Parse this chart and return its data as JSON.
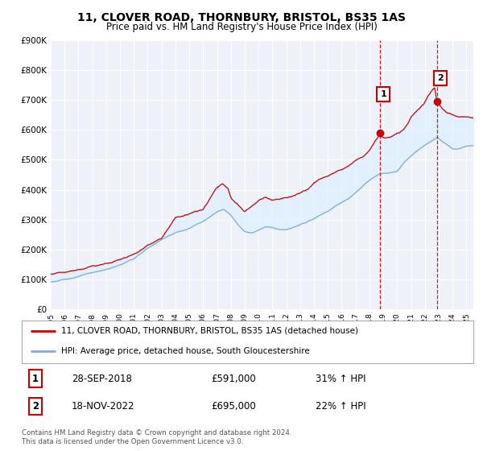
{
  "title": "11, CLOVER ROAD, THORNBURY, BRISTOL, BS35 1AS",
  "subtitle": "Price paid vs. HM Land Registry's House Price Index (HPI)",
  "red_label": "11, CLOVER ROAD, THORNBURY, BRISTOL, BS35 1AS (detached house)",
  "blue_label": "HPI: Average price, detached house, South Gloucestershire",
  "transaction1": {
    "label": "1",
    "date": "28-SEP-2018",
    "price": "£591,000",
    "change": "31% ↑ HPI",
    "year": 2018.75
  },
  "transaction2": {
    "label": "2",
    "date": "18-NOV-2022",
    "price": "£695,000",
    "change": "22% ↑ HPI",
    "year": 2022.88
  },
  "footer": "Contains HM Land Registry data © Crown copyright and database right 2024.\nThis data is licensed under the Open Government Licence v3.0.",
  "ylim": [
    0,
    900000
  ],
  "ytick_vals": [
    0,
    100000,
    200000,
    300000,
    400000,
    500000,
    600000,
    700000,
    800000,
    900000
  ],
  "ytick_labels": [
    "£0",
    "£100K",
    "£200K",
    "£300K",
    "£400K",
    "£500K",
    "£600K",
    "£700K",
    "£800K",
    "£900K"
  ],
  "xlim_start": 1995.0,
  "xlim_end": 2025.5,
  "xticks": [
    1995,
    1996,
    1997,
    1998,
    1999,
    2000,
    2001,
    2002,
    2003,
    2004,
    2005,
    2006,
    2007,
    2008,
    2009,
    2010,
    2011,
    2012,
    2013,
    2014,
    2015,
    2016,
    2017,
    2018,
    2019,
    2020,
    2021,
    2022,
    2023,
    2024,
    2025
  ],
  "red_color": "#cc0000",
  "blue_color": "#7aabdb",
  "blue_fill_color": "#ddeeff",
  "vline_color": "#cc0000",
  "marker1_value": 591000,
  "marker1_year": 2018.75,
  "marker2_value": 695000,
  "marker2_year": 2022.88,
  "background_plot": "#eef2f8",
  "background_fig": "#ffffff",
  "grid_color": "#ffffff"
}
